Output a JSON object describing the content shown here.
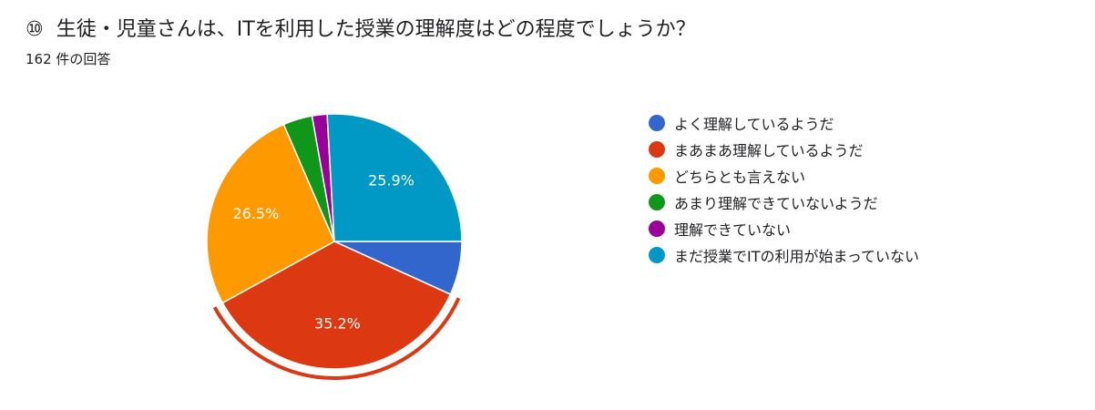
{
  "header": {
    "question_number": "⑩",
    "question_text": "生徒・児童さんは、ITを利用した授業の理解度はどの程度でしょうか？",
    "response_count": "162 件の回答"
  },
  "chart_data": {
    "type": "pie",
    "categories": [
      "よく理解しているようだ",
      "まあまあ理解しているようだ",
      "どちらとも言えない",
      "あまり理解できていないようだ",
      "理解できていない",
      "まだ授業でITの利用が始まっていない"
    ],
    "values": [
      6.8,
      35.2,
      26.5,
      3.7,
      1.9,
      25.9
    ],
    "value_labels": [
      "",
      "35.2%",
      "26.5%",
      "",
      "",
      "25.9%"
    ],
    "colors": [
      "#3366cc",
      "#dc3912",
      "#ff9900",
      "#109618",
      "#990099",
      "#0099c6"
    ],
    "highlighted_index": 1,
    "legend_position": "right"
  }
}
